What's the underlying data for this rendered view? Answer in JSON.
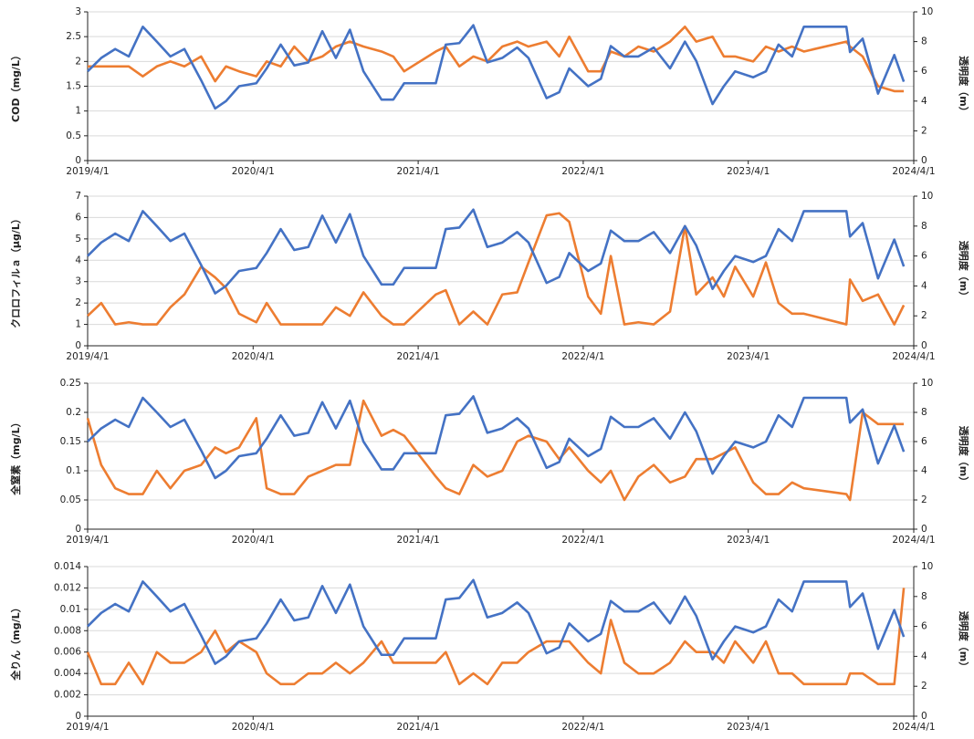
{
  "chart_data": [
    {
      "type": "line",
      "ylabel": "COD（mg/L）",
      "y2label": "透明度（m）",
      "x": [
        "2019/4/1",
        "2019/5/1",
        "2019/6/1",
        "2019/7/1",
        "2019/8/1",
        "2019/9/1",
        "2019/10/1",
        "2019/11/1",
        "2019/12/8",
        "2020/1/8",
        "2020/2/1",
        "2020/3/1",
        "2020/4/8",
        "2020/5/1",
        "2020/6/1",
        "2020/7/1",
        "2020/8/1",
        "2020/9/1",
        "2020/10/1",
        "2020/11/1",
        "2020/12/1",
        "2021/1/10",
        "2021/2/5",
        "2021/3/1",
        "2021/5/10",
        "2021/6/1",
        "2021/7/1",
        "2021/8/1",
        "2021/9/1",
        "2021/10/4",
        "2021/11/6",
        "2021/12/1",
        "2022/1/10",
        "2022/2/7",
        "2022/3/1",
        "2022/4/12",
        "2022/5/10",
        "2022/6/1",
        "2022/7/1",
        "2022/8/1",
        "2022/9/4",
        "2022/10/10",
        "2022/11/12",
        "2022/12/7",
        "2023/1/12",
        "2023/2/6",
        "2023/3/3",
        "2023/4/12",
        "2023/5/10",
        "2023/6/7",
        "2023/7/7",
        "2023/8/2",
        "2023/11/4",
        "2023/11/12",
        "2023/12/10",
        "2024/1/13",
        "2024/2/18",
        "2024/3/10"
      ],
      "xlim": [
        "2019/4/1",
        "2024/4/1"
      ],
      "xticks": [
        "2019/4/1",
        "2020/4/1",
        "2021/4/1",
        "2022/4/1",
        "2023/4/1",
        "2024/4/1"
      ],
      "ylim": [
        0,
        3
      ],
      "yticks": [
        0,
        0.5,
        1,
        1.5,
        2,
        2.5,
        3
      ],
      "y2lim": [
        0,
        10
      ],
      "y2ticks": [
        0,
        2,
        4,
        6,
        8,
        10
      ],
      "grid": true,
      "series": [
        {
          "color": "#ed7d31",
          "values": [
            1.9,
            1.9,
            1.9,
            1.9,
            1.7,
            1.9,
            2.0,
            1.9,
            2.1,
            1.6,
            1.9,
            1.8,
            1.7,
            2.0,
            1.9,
            2.3,
            2.0,
            2.1,
            2.3,
            2.4,
            2.3,
            2.2,
            2.1,
            1.8,
            2.2,
            2.3,
            1.9,
            2.1,
            2.0,
            2.3,
            2.4,
            2.3,
            2.4,
            2.1,
            2.5,
            1.8,
            1.8,
            2.2,
            2.1,
            2.3,
            2.2,
            2.4,
            2.7,
            2.4,
            2.5,
            2.1,
            2.1,
            2.0,
            2.3,
            2.2,
            2.3,
            2.2,
            2.4,
            2.3,
            2.1,
            1.5,
            1.4,
            1.4
          ]
        },
        {
          "color": "#4472c4",
          "axis": "y2",
          "values": [
            6.0,
            6.9,
            7.5,
            7.0,
            9.0,
            8.0,
            7.0,
            7.5,
            5.4,
            3.5,
            4.0,
            5.0,
            5.2,
            6.2,
            7.8,
            6.4,
            6.6,
            8.7,
            6.9,
            8.8,
            6.0,
            4.1,
            4.1,
            5.2,
            5.2,
            7.8,
            7.9,
            9.1,
            6.6,
            6.9,
            7.6,
            6.9,
            4.2,
            4.6,
            6.2,
            5.0,
            5.5,
            7.7,
            7.0,
            7.0,
            7.6,
            6.2,
            8.0,
            6.7,
            3.8,
            5.0,
            6.0,
            5.6,
            6.0,
            7.8,
            7.0,
            9.0,
            9.0,
            7.3,
            8.2,
            4.5,
            7.1,
            5.3
          ]
        }
      ]
    },
    {
      "type": "line",
      "ylabel": "クロロフィルａ（μg/L）",
      "y2label": "透明度（m）",
      "x": [
        "2019/4/1",
        "2019/5/1",
        "2019/6/1",
        "2019/7/1",
        "2019/8/1",
        "2019/9/1",
        "2019/10/1",
        "2019/11/1",
        "2019/12/8",
        "2020/1/8",
        "2020/2/1",
        "2020/3/1",
        "2020/4/8",
        "2020/5/1",
        "2020/6/1",
        "2020/7/1",
        "2020/8/1",
        "2020/9/1",
        "2020/10/1",
        "2020/11/1",
        "2020/12/1",
        "2021/1/10",
        "2021/2/5",
        "2021/3/1",
        "2021/5/10",
        "2021/6/1",
        "2021/7/1",
        "2021/8/1",
        "2021/9/1",
        "2021/10/4",
        "2021/11/6",
        "2021/12/1",
        "2022/1/10",
        "2022/2/7",
        "2022/3/1",
        "2022/4/12",
        "2022/5/10",
        "2022/6/1",
        "2022/7/1",
        "2022/8/1",
        "2022/9/4",
        "2022/10/10",
        "2022/11/12",
        "2022/12/7",
        "2023/1/12",
        "2023/2/6",
        "2023/3/3",
        "2023/4/12",
        "2023/5/10",
        "2023/6/7",
        "2023/7/7",
        "2023/8/2",
        "2023/11/4",
        "2023/11/12",
        "2023/12/10",
        "2024/1/13",
        "2024/2/18",
        "2024/3/10"
      ],
      "xlim": [
        "2019/4/1",
        "2024/4/1"
      ],
      "xticks": [
        "2019/4/1",
        "2020/4/1",
        "2021/4/1",
        "2022/4/1",
        "2023/4/1",
        "2024/4/1"
      ],
      "ylim": [
        0,
        7
      ],
      "yticks": [
        0,
        1,
        2,
        3,
        4,
        5,
        6,
        7
      ],
      "y2lim": [
        0,
        10
      ],
      "y2ticks": [
        0,
        2,
        4,
        6,
        8,
        10
      ],
      "grid": true,
      "series": [
        {
          "color": "#ed7d31",
          "values": [
            1.4,
            2.0,
            1.0,
            1.1,
            1.0,
            1.0,
            1.8,
            2.4,
            3.7,
            3.2,
            2.7,
            1.5,
            1.1,
            2.0,
            1.0,
            1.0,
            1.0,
            1.0,
            1.8,
            1.4,
            2.5,
            1.4,
            1.0,
            1.0,
            2.4,
            2.6,
            1.0,
            1.6,
            1.0,
            2.4,
            2.5,
            3.9,
            6.1,
            6.2,
            5.8,
            2.3,
            1.5,
            4.2,
            1.0,
            1.1,
            1.0,
            1.6,
            5.6,
            2.4,
            3.2,
            2.3,
            3.7,
            2.3,
            3.9,
            2.0,
            1.5,
            1.5,
            1.0,
            3.1,
            2.1,
            2.4,
            1.0,
            1.9
          ]
        },
        {
          "color": "#4472c4",
          "axis": "y2",
          "values": [
            6.0,
            6.9,
            7.5,
            7.0,
            9.0,
            8.0,
            7.0,
            7.5,
            5.4,
            3.5,
            4.0,
            5.0,
            5.2,
            6.2,
            7.8,
            6.4,
            6.6,
            8.7,
            6.9,
            8.8,
            6.0,
            4.1,
            4.1,
            5.2,
            5.2,
            7.8,
            7.9,
            9.1,
            6.6,
            6.9,
            7.6,
            6.9,
            4.2,
            4.6,
            6.2,
            5.0,
            5.5,
            7.7,
            7.0,
            7.0,
            7.6,
            6.2,
            8.0,
            6.7,
            3.8,
            5.0,
            6.0,
            5.6,
            6.0,
            7.8,
            7.0,
            9.0,
            9.0,
            7.3,
            8.2,
            4.5,
            7.1,
            5.3
          ]
        }
      ]
    },
    {
      "type": "line",
      "ylabel": "全窒素（mg/L）",
      "y2label": "透明度（m）",
      "x": [
        "2019/4/1",
        "2019/5/1",
        "2019/6/1",
        "2019/7/1",
        "2019/8/1",
        "2019/9/1",
        "2019/10/1",
        "2019/11/1",
        "2019/12/8",
        "2020/1/8",
        "2020/2/1",
        "2020/3/1",
        "2020/4/8",
        "2020/5/1",
        "2020/6/1",
        "2020/7/1",
        "2020/8/1",
        "2020/9/1",
        "2020/10/1",
        "2020/11/1",
        "2020/12/1",
        "2021/1/10",
        "2021/2/5",
        "2021/3/1",
        "2021/5/10",
        "2021/6/1",
        "2021/7/1",
        "2021/8/1",
        "2021/9/1",
        "2021/10/4",
        "2021/11/6",
        "2021/12/1",
        "2022/1/10",
        "2022/2/7",
        "2022/3/1",
        "2022/4/12",
        "2022/5/10",
        "2022/6/1",
        "2022/7/1",
        "2022/8/1",
        "2022/9/4",
        "2022/10/10",
        "2022/11/12",
        "2022/12/7",
        "2023/1/12",
        "2023/2/6",
        "2023/3/3",
        "2023/4/12",
        "2023/5/10",
        "2023/6/7",
        "2023/7/7",
        "2023/8/2",
        "2023/11/4",
        "2023/11/12",
        "2023/12/10",
        "2024/1/13",
        "2024/2/18",
        "2024/3/10"
      ],
      "xlim": [
        "2019/4/1",
        "2024/4/1"
      ],
      "xticks": [
        "2019/4/1",
        "2020/4/1",
        "2021/4/1",
        "2022/4/1",
        "2023/4/1",
        "2024/4/1"
      ],
      "ylim": [
        0,
        0.25
      ],
      "yticks": [
        0,
        0.05,
        0.1,
        0.15,
        0.2,
        0.25
      ],
      "y2lim": [
        0,
        10
      ],
      "y2ticks": [
        0,
        2,
        4,
        6,
        8,
        10
      ],
      "grid": true,
      "series": [
        {
          "color": "#ed7d31",
          "values": [
            0.19,
            0.11,
            0.07,
            0.06,
            0.06,
            0.1,
            0.07,
            0.1,
            0.11,
            0.14,
            0.13,
            0.14,
            0.19,
            0.07,
            0.06,
            0.06,
            0.09,
            0.1,
            0.11,
            0.11,
            0.22,
            0.16,
            0.17,
            0.16,
            0.09,
            0.07,
            0.06,
            0.11,
            0.09,
            0.1,
            0.15,
            0.16,
            0.15,
            0.12,
            0.14,
            0.1,
            0.08,
            0.1,
            0.05,
            0.09,
            0.11,
            0.08,
            0.09,
            0.12,
            0.12,
            0.13,
            0.14,
            0.08,
            0.06,
            0.06,
            0.08,
            0.07,
            0.06,
            0.05,
            0.2,
            0.18,
            0.18,
            0.18
          ]
        },
        {
          "color": "#4472c4",
          "axis": "y2",
          "values": [
            6.0,
            6.9,
            7.5,
            7.0,
            9.0,
            8.0,
            7.0,
            7.5,
            5.4,
            3.5,
            4.0,
            5.0,
            5.2,
            6.2,
            7.8,
            6.4,
            6.6,
            8.7,
            6.9,
            8.8,
            6.0,
            4.1,
            4.1,
            5.2,
            5.2,
            7.8,
            7.9,
            9.1,
            6.6,
            6.9,
            7.6,
            6.9,
            4.2,
            4.6,
            6.2,
            5.0,
            5.5,
            7.7,
            7.0,
            7.0,
            7.6,
            6.2,
            8.0,
            6.7,
            3.8,
            5.0,
            6.0,
            5.6,
            6.0,
            7.8,
            7.0,
            9.0,
            9.0,
            7.3,
            8.2,
            4.5,
            7.1,
            5.3
          ]
        }
      ]
    },
    {
      "type": "line",
      "ylabel": "全りん（mg/L）",
      "y2label": "透明度（m）",
      "x": [
        "2019/4/1",
        "2019/5/1",
        "2019/6/1",
        "2019/7/1",
        "2019/8/1",
        "2019/9/1",
        "2019/10/1",
        "2019/11/1",
        "2019/12/8",
        "2020/1/8",
        "2020/2/1",
        "2020/3/1",
        "2020/4/8",
        "2020/5/1",
        "2020/6/1",
        "2020/7/1",
        "2020/8/1",
        "2020/9/1",
        "2020/10/1",
        "2020/11/1",
        "2020/12/1",
        "2021/1/10",
        "2021/2/5",
        "2021/3/1",
        "2021/5/10",
        "2021/6/1",
        "2021/7/1",
        "2021/8/1",
        "2021/9/1",
        "2021/10/4",
        "2021/11/6",
        "2021/12/1",
        "2022/1/10",
        "2022/2/7",
        "2022/3/1",
        "2022/4/12",
        "2022/5/10",
        "2022/6/1",
        "2022/7/1",
        "2022/8/1",
        "2022/9/4",
        "2022/10/10",
        "2022/11/12",
        "2022/12/7",
        "2023/1/12",
        "2023/2/6",
        "2023/3/3",
        "2023/4/12",
        "2023/5/10",
        "2023/6/7",
        "2023/7/7",
        "2023/8/2",
        "2023/11/4",
        "2023/11/12",
        "2023/12/10",
        "2024/1/13",
        "2024/2/18",
        "2024/3/10"
      ],
      "xlim": [
        "2019/4/1",
        "2024/4/1"
      ],
      "xticks": [
        "2019/4/1",
        "2020/4/1",
        "2021/4/1",
        "2022/4/1",
        "2023/4/1",
        "2024/4/1"
      ],
      "ylim": [
        0,
        0.014
      ],
      "yticks": [
        0,
        0.002,
        0.004,
        0.006,
        0.008,
        0.01,
        0.012,
        0.014
      ],
      "y2lim": [
        0,
        10
      ],
      "y2ticks": [
        0,
        2,
        4,
        6,
        8,
        10
      ],
      "grid": true,
      "series": [
        {
          "color": "#ed7d31",
          "values": [
            0.006,
            0.003,
            0.003,
            0.005,
            0.003,
            0.006,
            0.005,
            0.005,
            0.006,
            0.008,
            0.006,
            0.007,
            0.006,
            0.004,
            0.003,
            0.003,
            0.004,
            0.004,
            0.005,
            0.004,
            0.005,
            0.007,
            0.005,
            0.005,
            0.005,
            0.006,
            0.003,
            0.004,
            0.003,
            0.005,
            0.005,
            0.006,
            0.007,
            0.007,
            0.007,
            0.005,
            0.004,
            0.009,
            0.005,
            0.004,
            0.004,
            0.005,
            0.007,
            0.006,
            0.006,
            0.005,
            0.007,
            0.005,
            0.007,
            0.004,
            0.004,
            0.003,
            0.003,
            0.004,
            0.004,
            0.003,
            0.003,
            0.012
          ]
        },
        {
          "color": "#4472c4",
          "axis": "y2",
          "values": [
            6.0,
            6.9,
            7.5,
            7.0,
            9.0,
            8.0,
            7.0,
            7.5,
            5.4,
            3.5,
            4.0,
            5.0,
            5.2,
            6.2,
            7.8,
            6.4,
            6.6,
            8.7,
            6.9,
            8.8,
            6.0,
            4.1,
            4.1,
            5.2,
            5.2,
            7.8,
            7.9,
            9.1,
            6.6,
            6.9,
            7.6,
            6.9,
            4.2,
            4.6,
            6.2,
            5.0,
            5.5,
            7.7,
            7.0,
            7.0,
            7.6,
            6.2,
            8.0,
            6.7,
            3.8,
            5.0,
            6.0,
            5.6,
            6.0,
            7.8,
            7.0,
            9.0,
            9.0,
            7.3,
            8.2,
            4.5,
            7.1,
            5.3
          ]
        }
      ]
    }
  ]
}
